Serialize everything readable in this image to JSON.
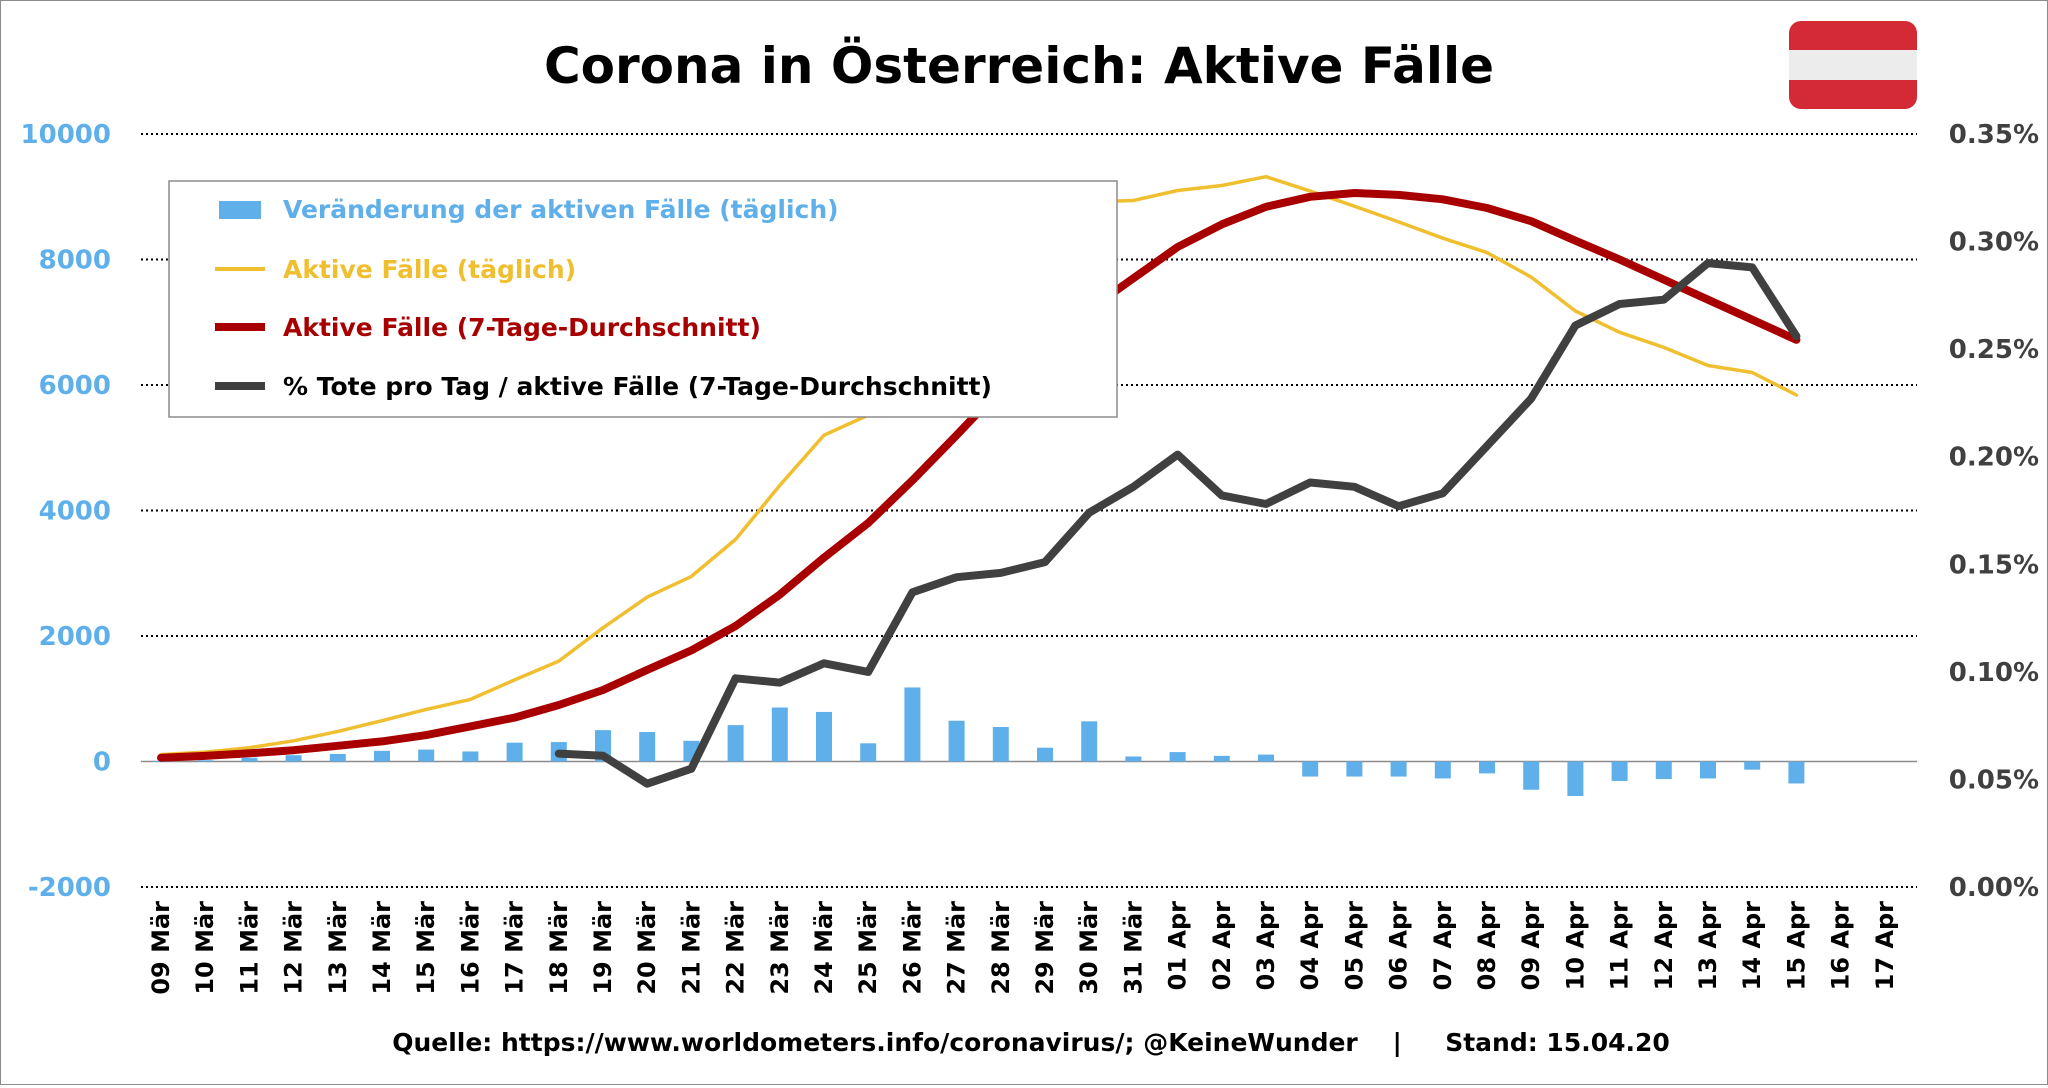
{
  "chart_data": {
    "type": "bar",
    "title": "Corona in Österreich: Aktive Fälle",
    "source_note": "Quelle: https://www.worldometers.info/coronavirus/; @KeineWunder    |     Stand: 15.04.20",
    "colors": {
      "bars": "#5fb0ea",
      "daily_line": "#f0bf2f",
      "avg_line": "#a80000",
      "pct_line": "#404040",
      "left_axis": "#5fb0ea",
      "right_axis": "#404040",
      "flag_red": "#d42a36",
      "flag_white": "#ececec"
    },
    "flag_icon": "austria-flag-icon",
    "categories": [
      "09 Mär",
      "10 Mär",
      "11 Mär",
      "12 Mär",
      "13 Mär",
      "14 Mär",
      "15 Mär",
      "16 Mär",
      "17 Mär",
      "18 Mär",
      "19 Mär",
      "20 Mär",
      "21 Mär",
      "22 Mär",
      "23 Mär",
      "24 Mär",
      "25 Mär",
      "26 Mär",
      "27 Mär",
      "28 Mär",
      "29 Mär",
      "30 Mär",
      "31 Mär",
      "01 Apr",
      "02 Apr",
      "03 Apr",
      "04 Apr",
      "05 Apr",
      "06 Apr",
      "07 Apr",
      "08 Apr",
      "09 Apr",
      "10 Apr",
      "11 Apr",
      "12 Apr",
      "13 Apr",
      "14 Apr",
      "15 Apr",
      "16 Apr",
      "17 Apr"
    ],
    "left_axis": {
      "ylim": [
        -2000,
        10000
      ],
      "ticks": [
        "10000",
        "8000",
        "6000",
        "4000",
        "2000",
        "0",
        "-2000"
      ],
      "tick_values": [
        10000,
        8000,
        6000,
        4000,
        2000,
        0,
        -2000
      ]
    },
    "right_axis": {
      "ylim": [
        0,
        0.35
      ],
      "ticks": [
        "0.35%",
        "0.30%",
        "0.25%",
        "0.20%",
        "0.15%",
        "0.10%",
        "0.05%",
        "0.00%"
      ],
      "tick_values": [
        0.35,
        0.3,
        0.25,
        0.2,
        0.15,
        0.1,
        0.05,
        0.0
      ]
    },
    "grid": "horizontal dotted",
    "legend_position": "top-left",
    "series": [
      {
        "name": "Veränderung der aktiven Fälle (täglich)",
        "kind": "bar",
        "axis": "left",
        "values": [
          10,
          20,
          60,
          100,
          120,
          170,
          190,
          160,
          300,
          310,
          500,
          470,
          330,
          580,
          860,
          790,
          290,
          1180,
          650,
          550,
          220,
          640,
          80,
          150,
          90,
          110,
          -240,
          -240,
          -240,
          -270,
          -190,
          -450,
          -550,
          -310,
          -280,
          -270,
          -130,
          -350,
          null,
          null
        ]
      },
      {
        "name": "Aktive Fälle (täglich)",
        "kind": "line",
        "axis": "left",
        "values": [
          110,
          150,
          220,
          330,
          480,
          650,
          830,
          990,
          1300,
          1600,
          2130,
          2620,
          2950,
          3540,
          4400,
          5200,
          5520,
          6470,
          6860,
          7340,
          7630,
          8920,
          8940,
          9100,
          9180,
          9320,
          9090,
          8850,
          8600,
          8340,
          8110,
          7720,
          7180,
          6840,
          6600,
          6310,
          6200,
          5840,
          null,
          null
        ]
      },
      {
        "name": "Aktive Fälle (7-Tage-Durchschnitt)",
        "kind": "line",
        "axis": "left",
        "values": [
          60,
          90,
          130,
          180,
          250,
          320,
          420,
          560,
          700,
          900,
          1140,
          1460,
          1770,
          2160,
          2660,
          3250,
          3800,
          4480,
          5200,
          5940,
          6600,
          7200,
          7700,
          8200,
          8560,
          8840,
          9000,
          9060,
          9030,
          8960,
          8820,
          8610,
          8300,
          8000,
          7680,
          7360,
          7040,
          6720,
          null,
          null
        ]
      },
      {
        "name": "% Tote pro Tag / aktive Fälle (7-Tage-Durchschnitt)",
        "kind": "line",
        "axis": "right",
        "values": [
          null,
          null,
          null,
          null,
          null,
          null,
          null,
          null,
          null,
          0.062,
          0.061,
          0.048,
          0.055,
          0.097,
          0.095,
          0.104,
          0.1,
          0.137,
          0.144,
          0.146,
          0.151,
          0.174,
          0.186,
          0.201,
          0.182,
          0.178,
          0.188,
          0.186,
          0.177,
          0.183,
          0.205,
          0.227,
          0.261,
          0.271,
          0.273,
          0.29,
          0.288,
          0.256,
          null,
          null
        ]
      }
    ]
  }
}
